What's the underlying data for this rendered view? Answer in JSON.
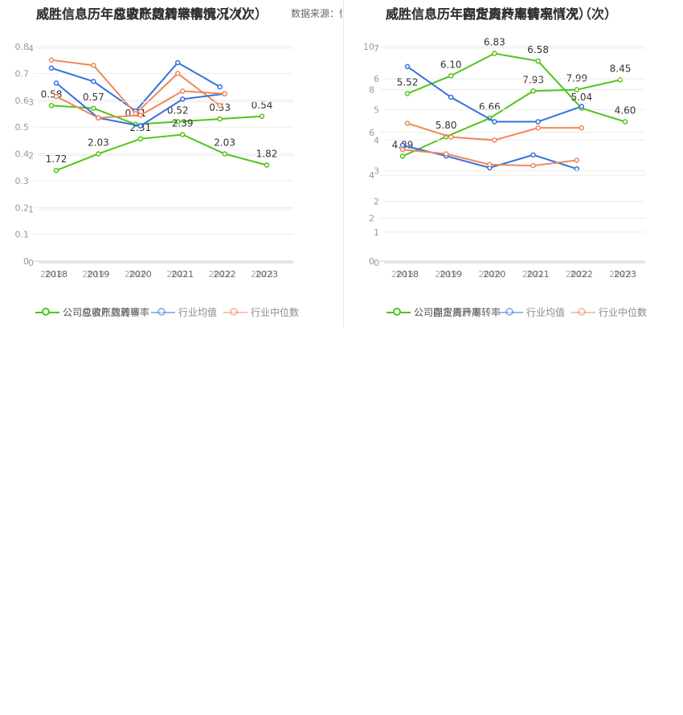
{
  "source_label": "数据来源：恒生聚源",
  "panels": [
    {
      "id": "left",
      "title_front": "威胜信息历年应收账款周转率情况（次）",
      "title_back": "威胜信息历年总资产周转率情况（次）",
      "legend_front": [
        "公司应收账款周转率",
        "行业均值",
        "行业中位数"
      ],
      "legend_back": [
        "公司总资产周转率",
        "行业均值",
        "行业中位数"
      ],
      "colors": {
        "company": "#52c41a",
        "mean": "#3271e0",
        "median": "#f0875c"
      }
    },
    {
      "id": "right",
      "title_front": "威胜信息历年固定资产周转率情况（次）",
      "title_back": "威胜信息历年存货周转率情况（次）",
      "legend_front": [
        "公司固定资产周转率",
        "行业均值",
        "行业中位数"
      ],
      "legend_back": [
        "公司存货周转率",
        "行业均值",
        "行业中位数"
      ],
      "colors": {
        "company": "#52c41a",
        "mean": "#3271e0",
        "median": "#f0875c"
      }
    }
  ],
  "chart_data": [
    {
      "panel": "left",
      "layer": "front",
      "type": "line",
      "title": "威胜信息历年应收账款周转率情况（次）",
      "categories": [
        "2018",
        "2019",
        "2020",
        "2021",
        "2022",
        "2023"
      ],
      "ylim": [
        0,
        4
      ],
      "yticks": [
        "0",
        "1",
        "2",
        "3",
        "4"
      ],
      "series": [
        {
          "name": "公司应收账款周转率",
          "key": "company",
          "values": [
            1.72,
            2.03,
            2.31,
            2.39,
            2.03,
            1.82
          ],
          "labels": [
            "1.72",
            "2.03",
            "2.31",
            "2.39",
            "2.03",
            "1.82"
          ]
        },
        {
          "name": "行业均值",
          "key": "mean",
          "values": [
            3.35,
            2.7,
            2.55,
            3.05,
            3.15,
            null
          ]
        },
        {
          "name": "行业中位数",
          "key": "median",
          "values": [
            3.1,
            2.7,
            2.75,
            3.2,
            3.15,
            null
          ]
        }
      ]
    },
    {
      "panel": "left",
      "layer": "back",
      "type": "line",
      "title": "威胜信息历年总资产周转率情况（次）",
      "categories": [
        "2018",
        "2019",
        "2020",
        "2021",
        "2022",
        "2023"
      ],
      "ylim": [
        0,
        0.8
      ],
      "yticks": [
        "0",
        "0.1",
        "0.2",
        "0.3",
        "0.4",
        "0.5",
        "0.6",
        "0.7",
        "0.8"
      ],
      "series": [
        {
          "name": "公司总资产周转率",
          "key": "company",
          "values": [
            0.58,
            0.57,
            0.51,
            0.52,
            0.53,
            0.54
          ],
          "labels": [
            "0.58",
            "0.57",
            "0.51",
            "0.52",
            "0.53",
            "0.54"
          ]
        },
        {
          "name": "行业均值",
          "key": "mean",
          "values": [
            0.72,
            0.67,
            0.56,
            0.74,
            0.65,
            null
          ]
        },
        {
          "name": "行业中位数",
          "key": "median",
          "values": [
            0.75,
            0.73,
            0.55,
            0.7,
            0.58,
            null
          ]
        }
      ]
    },
    {
      "panel": "right",
      "layer": "front",
      "type": "line",
      "title": "威胜信息历年固定资产周转率情况（次）",
      "categories": [
        "2018",
        "2019",
        "2020",
        "2021",
        "2022",
        "2023"
      ],
      "ylim": [
        0,
        7
      ],
      "yticks": [
        "0",
        "1",
        "2",
        "3",
        "4",
        "5",
        "6",
        "7"
      ],
      "series": [
        {
          "name": "公司固定资产周转率",
          "key": "company",
          "values": [
            5.52,
            6.1,
            6.83,
            6.58,
            5.04,
            4.6
          ],
          "labels": [
            "5.52",
            "6.10",
            "6.83",
            "6.58",
            "5.04",
            "4.60"
          ]
        },
        {
          "name": "行业均值",
          "key": "mean",
          "values": [
            6.4,
            5.4,
            4.6,
            4.6,
            5.1,
            null
          ]
        },
        {
          "name": "行业中位数",
          "key": "median",
          "values": [
            4.55,
            4.1,
            4.0,
            4.4,
            4.4,
            null
          ]
        }
      ]
    },
    {
      "panel": "right",
      "layer": "back",
      "type": "line",
      "title": "威胜信息历年存货周转率情况（次）",
      "categories": [
        "2018",
        "2019",
        "2020",
        "2021",
        "2022",
        "2023"
      ],
      "ylim": [
        0,
        10
      ],
      "yticks": [
        "0",
        "2",
        "4",
        "6",
        "8",
        "10"
      ],
      "series": [
        {
          "name": "公司存货周转率",
          "key": "company",
          "values": [
            4.89,
            5.8,
            6.66,
            7.93,
            7.99,
            8.45
          ],
          "labels": [
            "4.89",
            "5.80",
            "6.66",
            "7.93",
            "7.99",
            "8.45"
          ]
        },
        {
          "name": "行业均值",
          "key": "mean",
          "values": [
            5.4,
            4.9,
            4.35,
            4.95,
            4.3,
            null
          ]
        },
        {
          "name": "行业中位数",
          "key": "median",
          "values": [
            5.2,
            5.0,
            4.5,
            4.45,
            4.7,
            null
          ]
        }
      ]
    }
  ]
}
